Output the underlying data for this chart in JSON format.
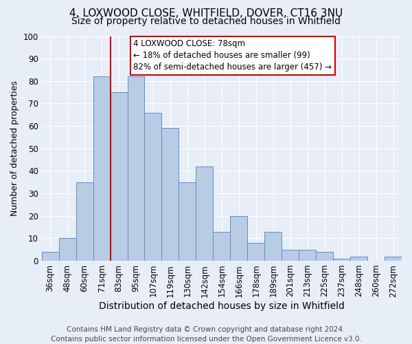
{
  "title": "4, LOXWOOD CLOSE, WHITFIELD, DOVER, CT16 3NU",
  "subtitle": "Size of property relative to detached houses in Whitfield",
  "xlabel": "Distribution of detached houses by size in Whitfield",
  "ylabel": "Number of detached properties",
  "footer_line1": "Contains HM Land Registry data © Crown copyright and database right 2024.",
  "footer_line2": "Contains public sector information licensed under the Open Government Licence v3.0.",
  "bin_labels": [
    "36sqm",
    "48sqm",
    "60sqm",
    "71sqm",
    "83sqm",
    "95sqm",
    "107sqm",
    "119sqm",
    "130sqm",
    "142sqm",
    "154sqm",
    "166sqm",
    "178sqm",
    "189sqm",
    "201sqm",
    "213sqm",
    "225sqm",
    "237sqm",
    "248sqm",
    "260sqm",
    "272sqm"
  ],
  "bar_values": [
    4,
    10,
    35,
    82,
    75,
    82,
    66,
    59,
    35,
    42,
    13,
    20,
    8,
    13,
    5,
    5,
    4,
    1,
    2,
    0,
    2
  ],
  "bar_color": "#b8cce4",
  "bar_edge_color": "#5b8fc9",
  "ylim": [
    0,
    100
  ],
  "yticks": [
    0,
    10,
    20,
    30,
    40,
    50,
    60,
    70,
    80,
    90,
    100
  ],
  "property_label": "4 LOXWOOD CLOSE: 78sqm",
  "annotation_line1": "← 18% of detached houses are smaller (99)",
  "annotation_line2": "82% of semi-detached houses are larger (457) →",
  "vline_x": 3.5,
  "vline_color": "#cc0000",
  "annotation_box_color": "#ffffff",
  "annotation_box_edge_color": "#cc0000",
  "background_color": "#e8eef8",
  "grid_color": "#ffffff",
  "title_fontsize": 11,
  "subtitle_fontsize": 10,
  "xlabel_fontsize": 10,
  "ylabel_fontsize": 9,
  "tick_fontsize": 8.5,
  "footer_fontsize": 7.5
}
